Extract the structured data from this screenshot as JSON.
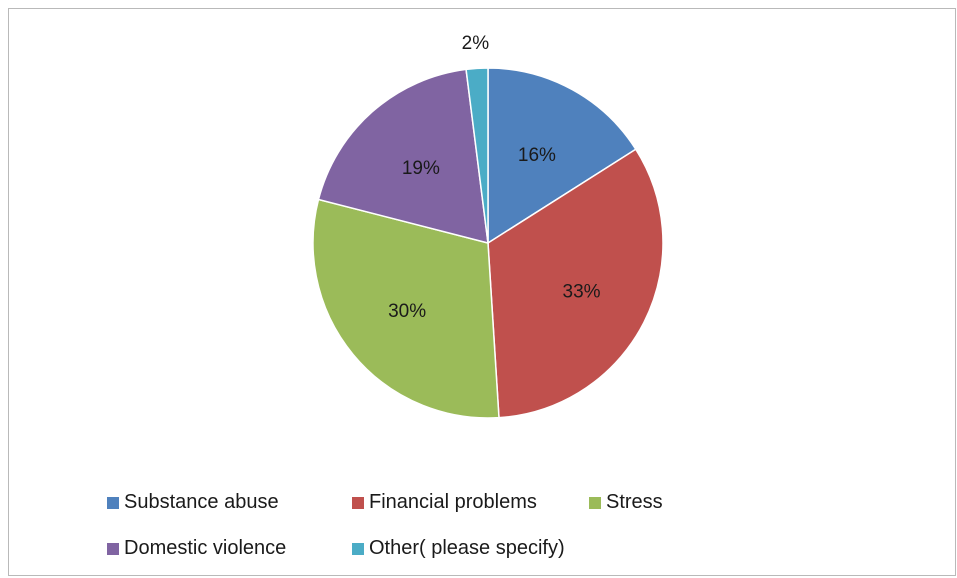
{
  "chart_data": {
    "type": "pie",
    "categories": [
      "Substance abuse",
      "Financial problems",
      "Stress",
      "Domestic violence",
      "Other( please specify)"
    ],
    "values": [
      16,
      33,
      30,
      19,
      2
    ],
    "data_labels": [
      "16%",
      "33%",
      "30%",
      "19%",
      "2%"
    ],
    "colors": [
      "#4f81bd",
      "#c0504d",
      "#9bbb59",
      "#8064a2",
      "#4bacc6"
    ],
    "legend_position": "bottom"
  }
}
